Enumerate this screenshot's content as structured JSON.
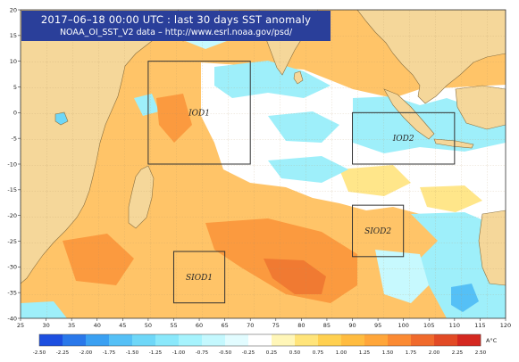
{
  "title": {
    "line1": "2017–06–18 00:00 UTC : last 30 days SST anomaly",
    "line2": "NOAA_OI_SST_V2 data – http://www.esrl.noaa.gov/psd/"
  },
  "axes": {
    "lon_ticks": [
      "25",
      "30",
      "35",
      "40",
      "45",
      "50",
      "55",
      "60",
      "65",
      "70",
      "75",
      "80",
      "85",
      "90",
      "95",
      "100",
      "105",
      "110",
      "115",
      "120"
    ],
    "lat_ticks": [
      "20",
      "15",
      "10",
      "5",
      "0",
      "-5",
      "-10",
      "-15",
      "-20",
      "-25",
      "-30",
      "-35",
      "-40"
    ],
    "lon_range": [
      25,
      120
    ],
    "lat_range": [
      -40,
      20
    ]
  },
  "regions": [
    {
      "name": "IOD1",
      "lon": [
        50,
        70
      ],
      "lat": [
        -10,
        10
      ]
    },
    {
      "name": "IOD2",
      "lon": [
        90,
        110
      ],
      "lat": [
        -10,
        0
      ]
    },
    {
      "name": "SIOD2",
      "lon": [
        90,
        100
      ],
      "lat": [
        -28,
        -18
      ]
    },
    {
      "name": "SIOD1",
      "lon": [
        55,
        65
      ],
      "lat": [
        -37,
        -27
      ]
    }
  ],
  "colorbar": {
    "labels": [
      "-2.50",
      "-2.25",
      "-2.00",
      "-1.75",
      "-1.50",
      "-1.25",
      "-1.00",
      "-0.75",
      "-0.50",
      "-0.25",
      "0.25",
      "0.50",
      "0.75",
      "1.00",
      "1.25",
      "1.50",
      "1.75",
      "2.00",
      "2.25",
      "2.50"
    ],
    "unit": "A°C",
    "colors": [
      "#1d4fe0",
      "#2a78ea",
      "#3aa0f2",
      "#55c0f6",
      "#6ed7f8",
      "#8ae8fb",
      "#a6f3fd",
      "#c4f8fe",
      "#e2fcff",
      "#ffffff",
      "#fff6b8",
      "#ffe47a",
      "#ffd050",
      "#ffbc40",
      "#ffa63a",
      "#fb8a33",
      "#f06a2c",
      "#e24a25",
      "#d42820"
    ]
  },
  "colors": {
    "land": "#f5d79a",
    "coast": "#8a7040",
    "ocean_warm": "#ffc468",
    "ocean_neutral": "#ffffff",
    "ocean_cool": "#a9f3fb",
    "box": "#333333",
    "title_bg": "#2a3f9a"
  }
}
